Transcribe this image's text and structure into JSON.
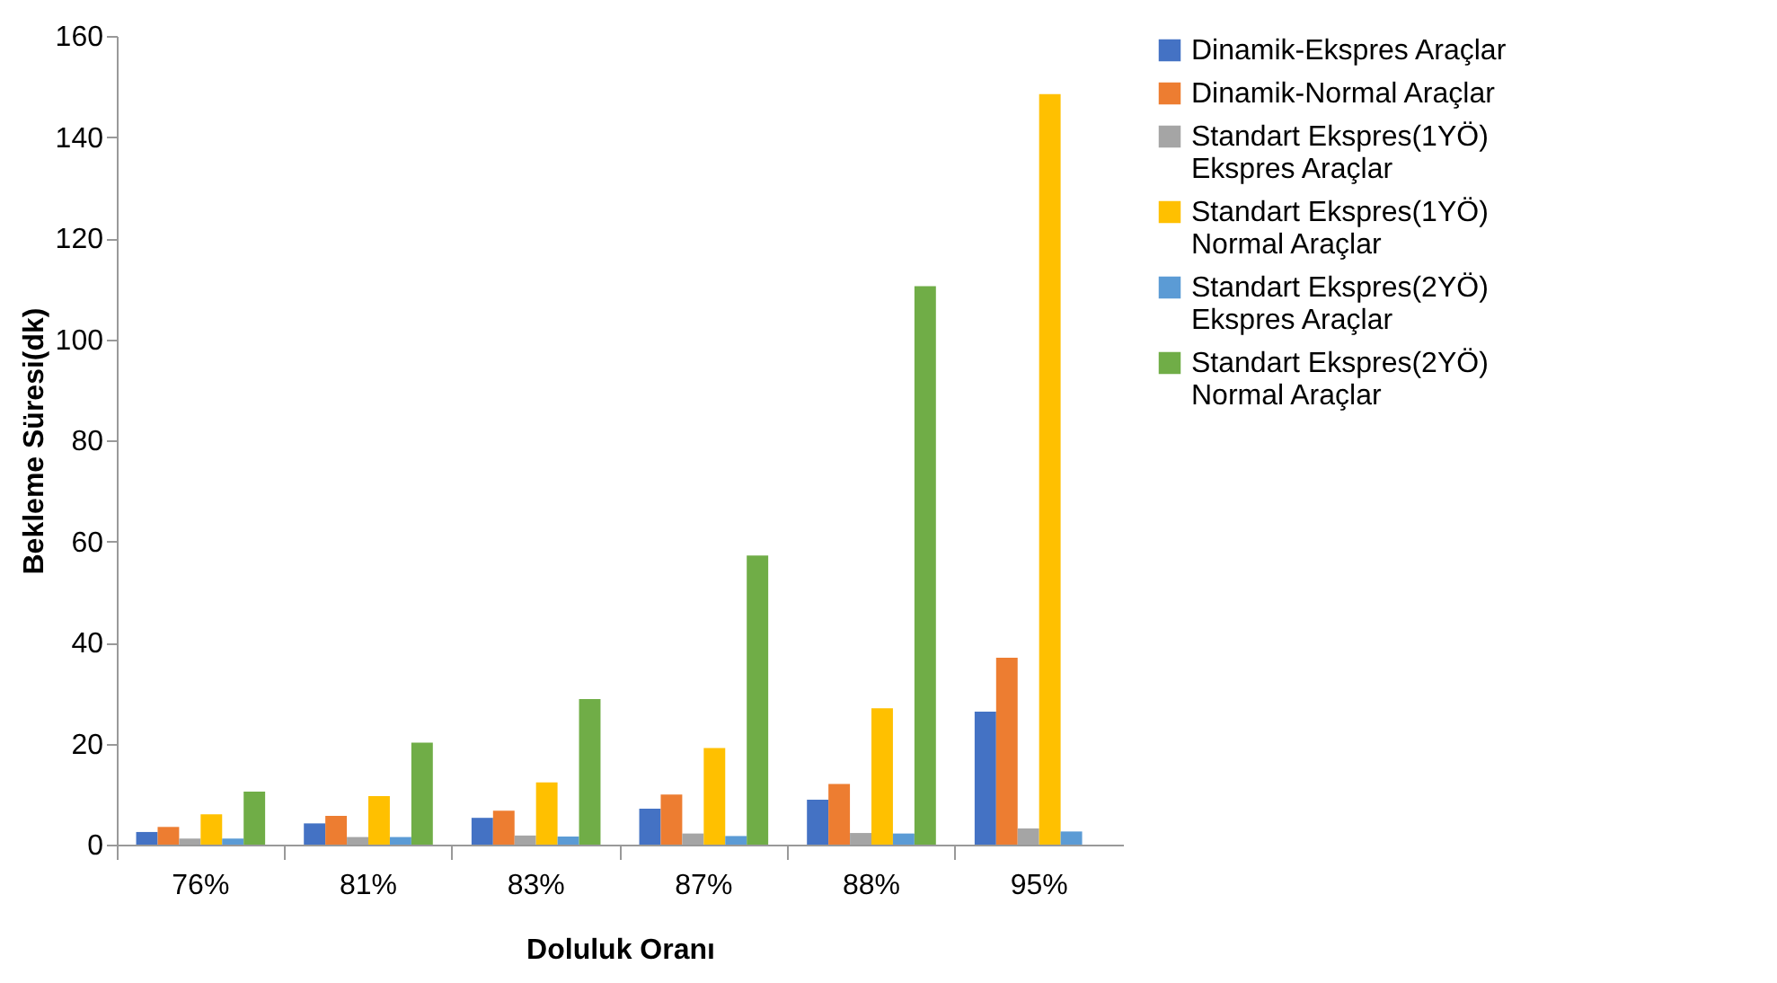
{
  "chart_data": {
    "type": "bar",
    "xlabel": "Doluluk Oranı",
    "ylabel": "Bekleme Süresi(dk)",
    "categories": [
      "76%",
      "81%",
      "83%",
      "87%",
      "88%",
      "95%"
    ],
    "series": [
      {
        "name": "Dinamik-Ekspres Araçlar",
        "color": "#4472c4",
        "values": [
          2.5,
          4.2,
          5.3,
          7.1,
          8.9,
          26.3
        ]
      },
      {
        "name": "Dinamik-Normal Araçlar",
        "color": "#ed7d31",
        "values": [
          3.5,
          5.7,
          6.7,
          9.9,
          12.0,
          37.0
        ]
      },
      {
        "name": "Standart Ekspres(1YÖ) Ekspres Araçlar",
        "color": "#a5a5a5",
        "values": [
          1.2,
          1.5,
          1.8,
          2.2,
          2.3,
          3.2
        ]
      },
      {
        "name": "Standart Ekspres(1YÖ) Normal Araçlar",
        "color": "#ffc000",
        "values": [
          6.0,
          9.6,
          12.3,
          19.1,
          27.0,
          148.5
        ]
      },
      {
        "name": "Standart Ekspres(2YÖ) Ekspres Araçlar",
        "color": "#5b9bd5",
        "values": [
          1.2,
          1.5,
          1.6,
          1.7,
          2.2,
          2.6
        ]
      },
      {
        "name": "Standart Ekspres(2YÖ) Normal Araçlar",
        "color": "#70ad47",
        "values": [
          10.5,
          20.2,
          28.8,
          57.2,
          110.5,
          null
        ]
      }
    ],
    "ylim": [
      0,
      160
    ],
    "yticks": [
      0,
      20,
      40,
      60,
      80,
      100,
      120,
      140,
      160
    ],
    "grid": false,
    "legend": "right"
  }
}
